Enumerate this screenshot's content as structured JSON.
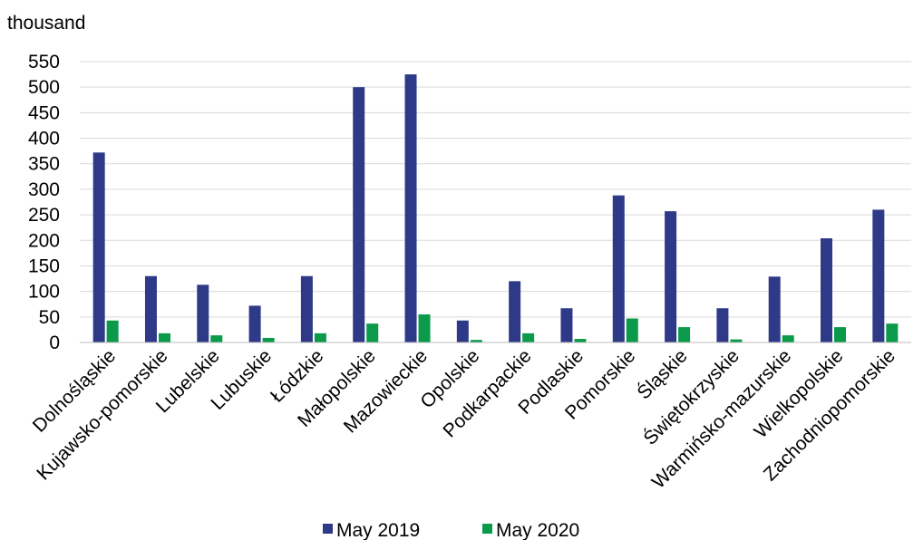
{
  "chart_data": {
    "type": "bar",
    "unit_label": "thousand",
    "categories": [
      "Dolnośląskie",
      "Kujawsko-pomorskie",
      "Lubelskie",
      "Lubuskie",
      "Łódzkie",
      "Małopolskie",
      "Mazowieckie",
      "Opolskie",
      "Podkarpackie",
      "Podlaskie",
      "Pomorskie",
      "Śląskie",
      "Świętokrzyskie",
      "Warmińsko-mazurskie",
      "Wielkopolskie",
      "Zachodniopomorskie"
    ],
    "series": [
      {
        "name": "May 2019",
        "color": "#2e3a87",
        "values": [
          372,
          130,
          113,
          72,
          130,
          500,
          525,
          43,
          120,
          67,
          288,
          257,
          67,
          129,
          204,
          260
        ]
      },
      {
        "name": "May 2020",
        "color": "#0a9a4a",
        "values": [
          43,
          18,
          14,
          9,
          18,
          37,
          55,
          5,
          18,
          7,
          47,
          30,
          6,
          14,
          30,
          37
        ]
      }
    ],
    "ylim": [
      0,
      550
    ],
    "yticks": [
      0,
      50,
      100,
      150,
      200,
      250,
      300,
      350,
      400,
      450,
      500,
      550
    ],
    "grid": true,
    "legend_position": "bottom"
  }
}
